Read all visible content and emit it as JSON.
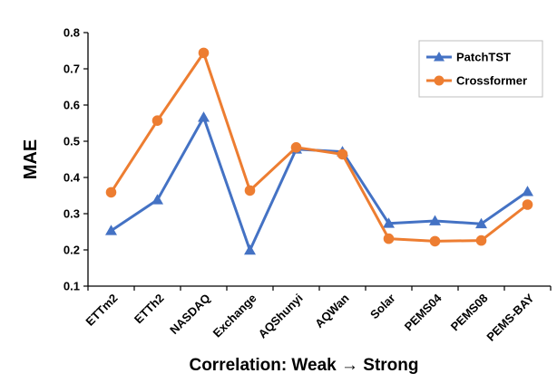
{
  "chart_data": {
    "type": "line",
    "title": "",
    "xlabel": "Correlation:  Weak → Strong",
    "ylabel": "MAE",
    "ylim": [
      0.1,
      0.8
    ],
    "yticks": [
      "0.1",
      "0.2",
      "0.3",
      "0.4",
      "0.5",
      "0.6",
      "0.7",
      "0.8"
    ],
    "categories": [
      "ETTm2",
      "ETTh2",
      "NASDAQ",
      "Exchange",
      "AQShunyi",
      "AQWan",
      "Solar",
      "PEMS04",
      "PEMS08",
      "PEMS-BAY"
    ],
    "grid": false,
    "legend_position": "top-right",
    "series": [
      {
        "name": "PatchTST",
        "color": "#4472C4",
        "marker": "triangle",
        "values": [
          0.253,
          0.338,
          0.566,
          0.199,
          0.478,
          0.471,
          0.273,
          0.28,
          0.272,
          0.361
        ]
      },
      {
        "name": "Crossformer",
        "color": "#ED7D31",
        "marker": "circle",
        "values": [
          0.359,
          0.557,
          0.744,
          0.364,
          0.483,
          0.464,
          0.231,
          0.224,
          0.226,
          0.325
        ]
      }
    ]
  }
}
